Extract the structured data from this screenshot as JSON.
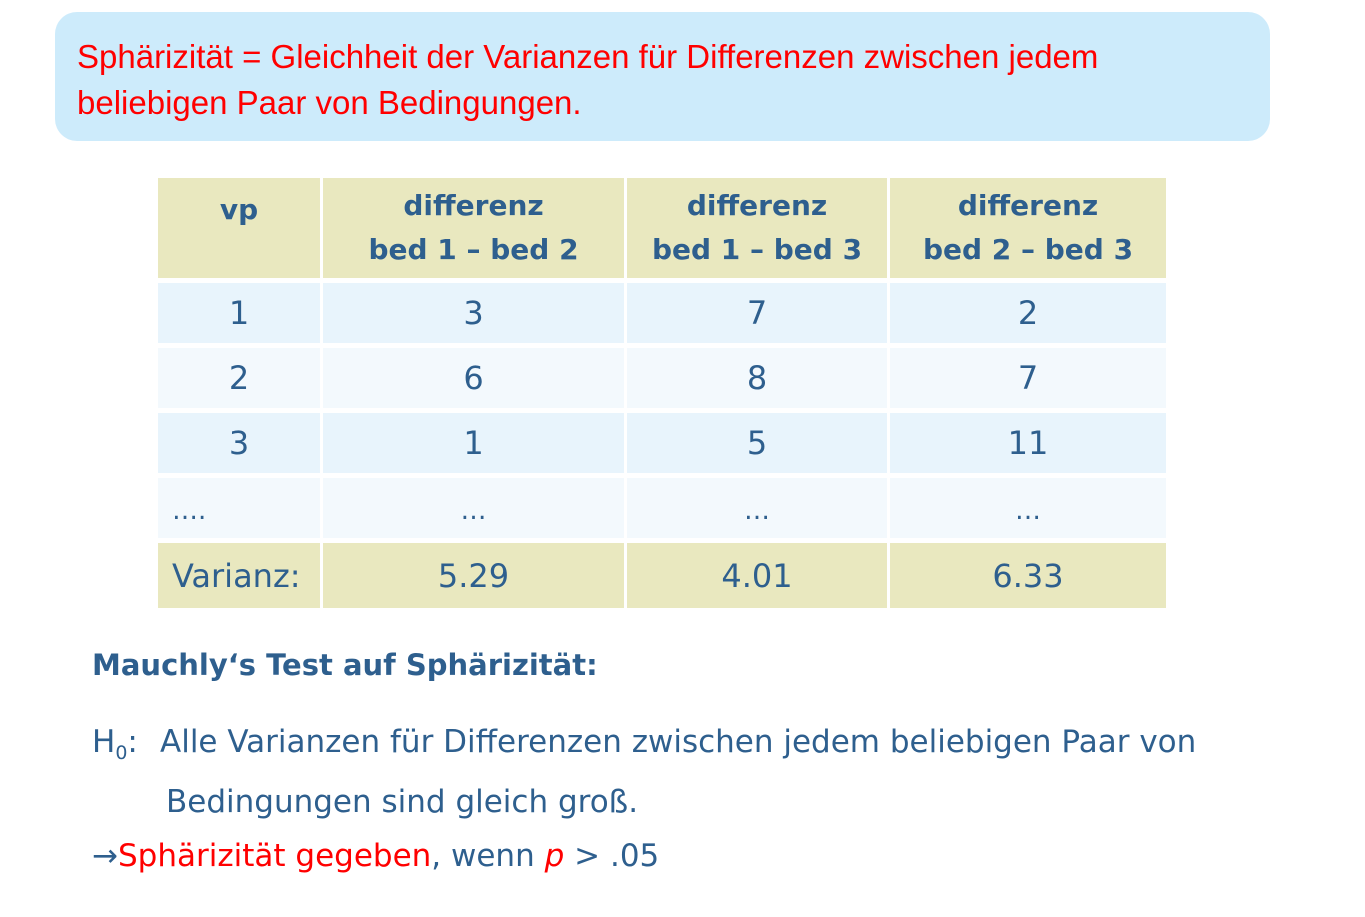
{
  "callout": {
    "text": "Sphärizität = Gleichheit der Varianzen für Differenzen zwischen jedem beliebigen Paar von Bedingungen."
  },
  "table": {
    "headers": [
      {
        "line1": "vp",
        "line2": ""
      },
      {
        "line1": "differenz",
        "line2": "bed 1 – bed 2"
      },
      {
        "line1": "differenz",
        "line2": "bed 1 – bed 3"
      },
      {
        "line1": "differenz",
        "line2": "bed 2 – bed 3"
      }
    ],
    "rows": [
      [
        "1",
        "3",
        "7",
        "2"
      ],
      [
        "2",
        "6",
        "8",
        "7"
      ],
      [
        "3",
        "1",
        "5",
        "11"
      ],
      [
        "….",
        "…",
        "…",
        "…"
      ]
    ],
    "variance_row": [
      "Varianz:",
      "5.29",
      "4.01",
      "6.33"
    ]
  },
  "mauchly": {
    "title": "Mauchly‘s Test auf Sphärizität:"
  },
  "h0": {
    "label": "H",
    "sub": "0",
    "colon": ":",
    "line1": "Alle Varianzen für Differenzen zwischen jedem beliebigen Paar von",
    "line2": "Bedingungen sind gleich groß."
  },
  "result": {
    "arrow": "→",
    "red_text": "Sphärizität gegeben",
    "middle_text": ", wenn ",
    "p": "p",
    "tail": " > .05"
  },
  "colors": {
    "callout_bg": "#cdebfb",
    "red": "#ff0000",
    "blue_text": "#2e5f8e",
    "header_bg": "#e9e8bf",
    "row_bg": "#e8f4fc"
  }
}
